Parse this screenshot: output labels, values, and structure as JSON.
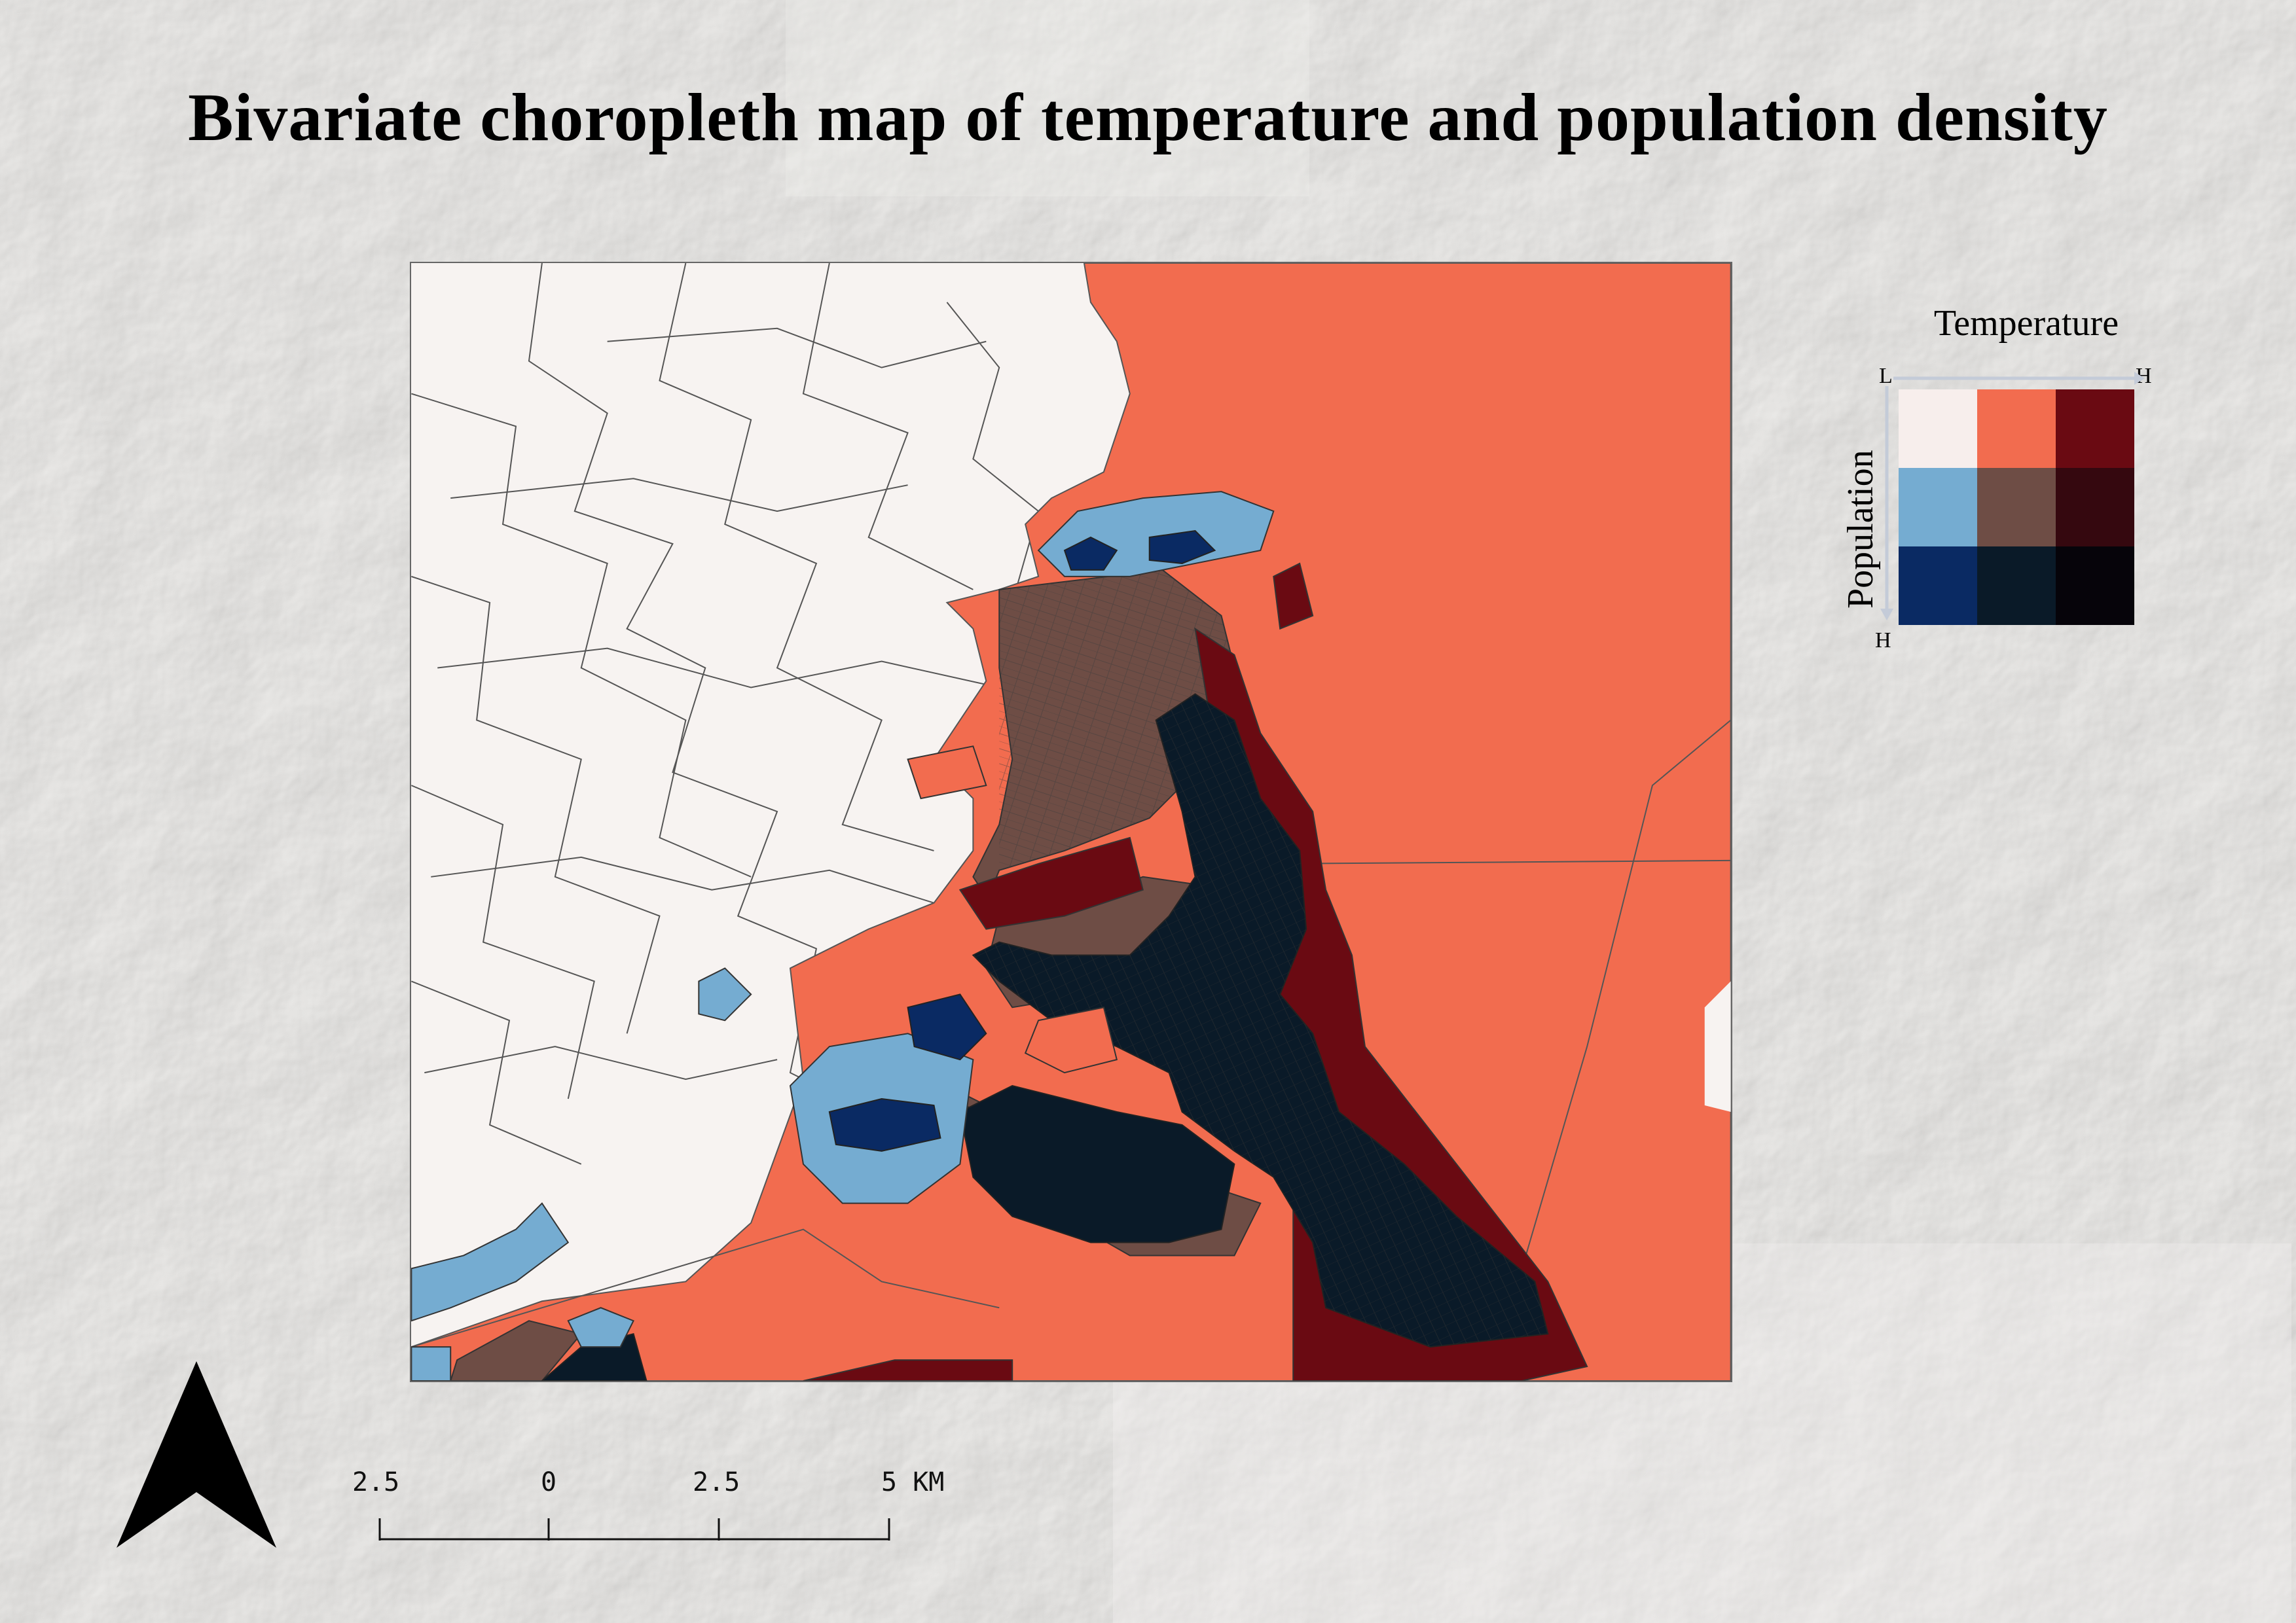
{
  "title": "Bivariate choropleth map of temperature and population density",
  "legend": {
    "x_title": "Temperature",
    "y_title": "Population",
    "low_label": "L",
    "high_label": "H",
    "y_high_label": "H",
    "grid_colors": [
      [
        "#f7eeec",
        "#f26c4f",
        "#6a0a12"
      ],
      [
        "#75acd1",
        "#6e4d45",
        "#35080f"
      ],
      [
        "#0a2a63",
        "#0a1a28",
        "#06040a"
      ]
    ]
  },
  "scalebar": {
    "labels": [
      "2.5",
      "0",
      "2.5",
      "5 KM"
    ],
    "unit": "KM"
  },
  "colors": {
    "sea_high_temp": "#f26c4f",
    "low_low": "#f7f3f1",
    "high_temp_low_pop": "#6a0a12",
    "mid_mid": "#6e4d45",
    "high_high": "#0a1a28",
    "low_temp_mid_pop": "#75acd1",
    "low_temp_high_pop": "#0a2a63",
    "boundary": "#555555"
  },
  "icons": {
    "north_arrow": "north-arrow-icon"
  }
}
